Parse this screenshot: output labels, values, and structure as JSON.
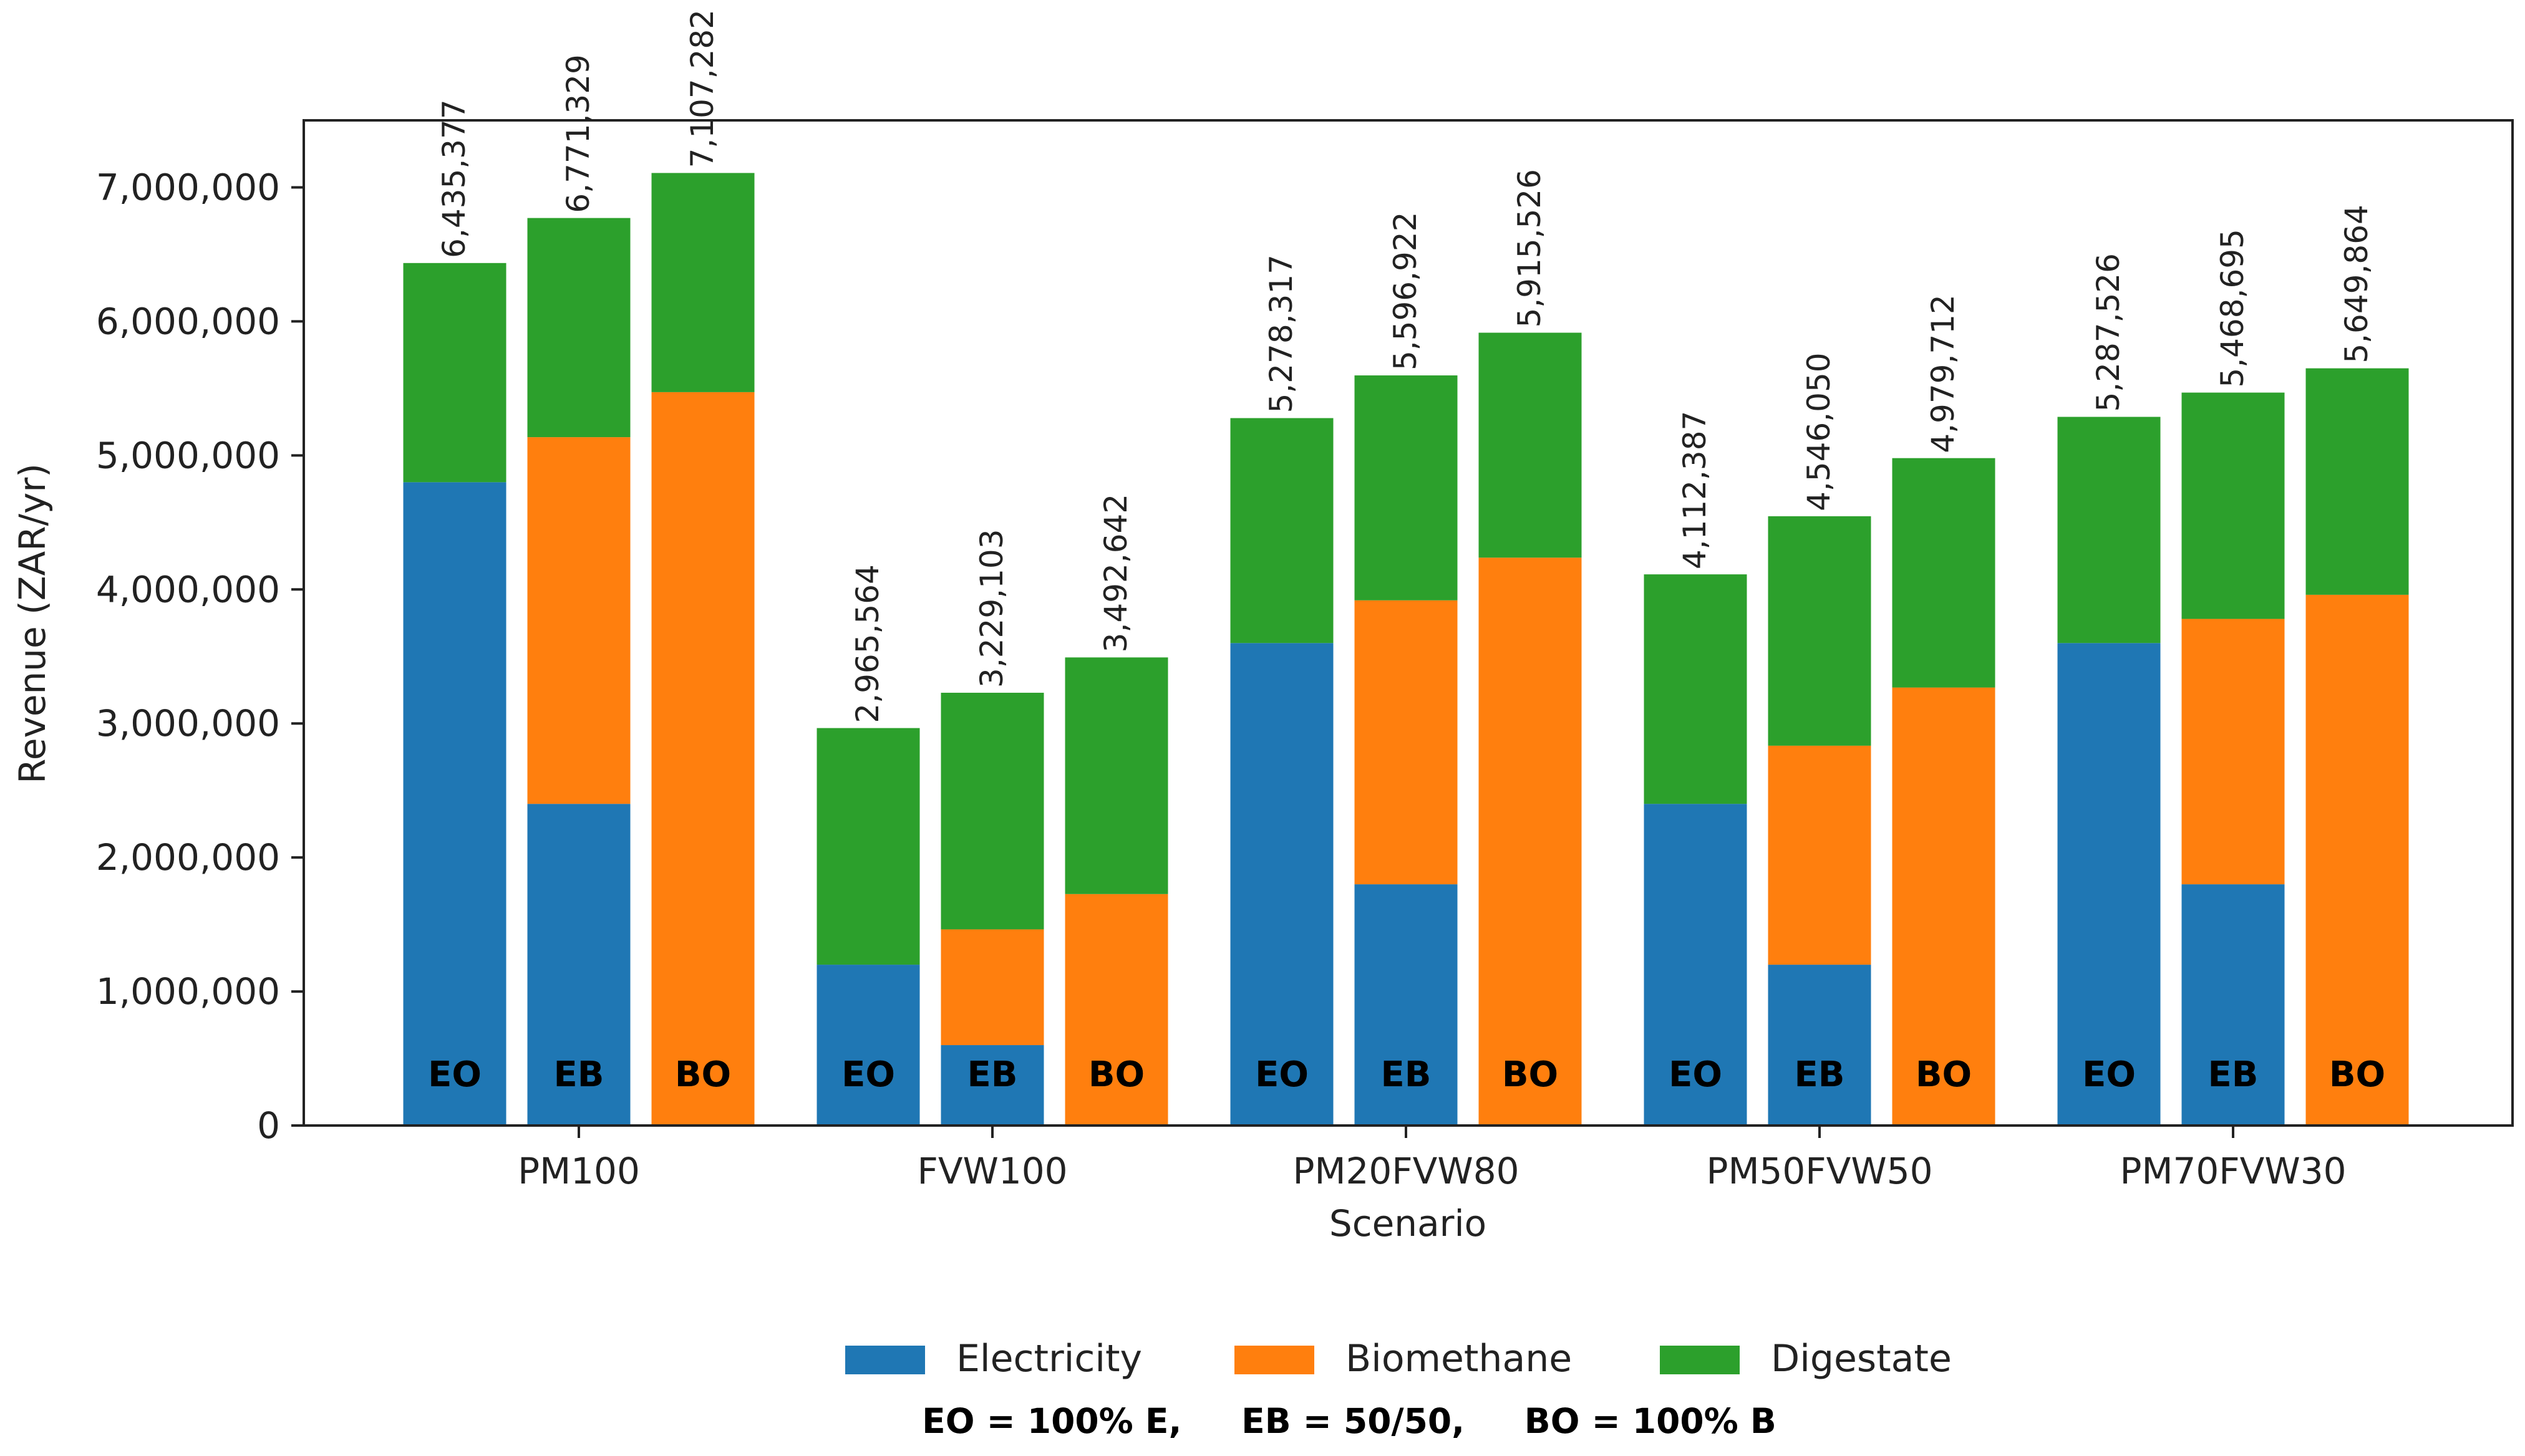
{
  "chart_data": {
    "type": "bar",
    "stacked": true,
    "xlabel": "Scenario",
    "ylabel": "Revenue (ZAR/yr)",
    "ylim": [
      0,
      7500000
    ],
    "yticks": [
      0,
      1000000,
      2000000,
      3000000,
      4000000,
      5000000,
      6000000,
      7000000
    ],
    "ytick_labels": [
      "0",
      "1,000,000",
      "2,000,000",
      "3,000,000",
      "4,000,000",
      "5,000,000",
      "6,000,000",
      "7,000,000"
    ],
    "groups": [
      "PM100",
      "FVW100",
      "PM20FVW80",
      "PM50FVW50",
      "PM70FVW30"
    ],
    "subgroups": [
      "EO",
      "EB",
      "BO"
    ],
    "series": [
      {
        "name": "Electricity",
        "color": "#1f77b4",
        "values": [
          [
            4800000,
            2400000,
            0
          ],
          [
            1200000,
            600000,
            0
          ],
          [
            3600000,
            1800000,
            0
          ],
          [
            2400000,
            1200000,
            0
          ],
          [
            3600000,
            1800000,
            0
          ]
        ]
      },
      {
        "name": "Biomethane",
        "color": "#ff7f0e",
        "values": [
          [
            0,
            2736000,
            5472000
          ],
          [
            0,
            863500,
            1727000
          ],
          [
            0,
            2118600,
            4237200
          ],
          [
            0,
            1634000,
            3268000
          ],
          [
            0,
            1980000,
            3960000
          ]
        ]
      },
      {
        "name": "Digestate",
        "color": "#2ca02c",
        "values": [
          [
            1635377,
            1635329,
            1635282
          ],
          [
            1765564,
            1765603,
            1765642
          ],
          [
            1678317,
            1678322,
            1678326
          ],
          [
            1712387,
            1712050,
            1711712
          ],
          [
            1687526,
            1688695,
            1689864
          ]
        ]
      }
    ],
    "totals": [
      [
        6435377,
        6771329,
        7107282
      ],
      [
        2965564,
        3229103,
        3492642
      ],
      [
        5278317,
        5596922,
        5915526
      ],
      [
        4112387,
        4546050,
        4979712
      ],
      [
        5287526,
        5468695,
        5649864
      ]
    ],
    "total_labels": [
      [
        "6,435,377",
        "6,771,329",
        "7,107,282"
      ],
      [
        "2,965,564",
        "3,229,103",
        "3,492,642"
      ],
      [
        "5,278,317",
        "5,596,922",
        "5,915,526"
      ],
      [
        "4,112,387",
        "4,546,050",
        "4,979,712"
      ],
      [
        "5,287,526",
        "5,468,695",
        "5,649,864"
      ]
    ],
    "legend": {
      "position": "bottom-center",
      "entries": [
        "Electricity",
        "Biomethane",
        "Digestate"
      ]
    },
    "footnote": "EO = 100% E,     EB = 50/50,     BO = 100% B",
    "grid": false
  }
}
